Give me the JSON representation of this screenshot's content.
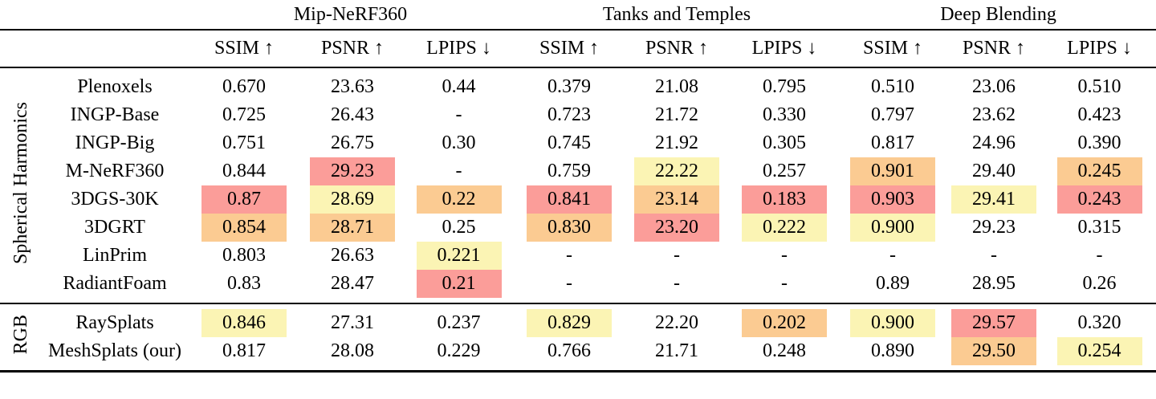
{
  "table": {
    "highlight_colors": {
      "best": "#fb9d99",
      "second": "#fbcb92",
      "third": "#fbf4b4"
    },
    "groups": [
      {
        "label": "Mip-NeRF360"
      },
      {
        "label": "Tanks and Temples"
      },
      {
        "label": "Deep Blending"
      }
    ],
    "metric_headers": [
      "SSIM ↑",
      "PSNR ↑",
      "LPIPS ↓",
      "SSIM ↑",
      "PSNR ↑",
      "LPIPS ↓",
      "SSIM ↑",
      "PSNR ↑",
      "LPIPS ↓"
    ],
    "sections": [
      {
        "label": "Spherical Harmonics",
        "rows": [
          {
            "method": "Plenoxels",
            "values": [
              "0.670",
              "23.63",
              "0.44",
              "0.379",
              "21.08",
              "0.795",
              "0.510",
              "23.06",
              "0.510"
            ],
            "hl": [
              null,
              null,
              null,
              null,
              null,
              null,
              null,
              null,
              null
            ]
          },
          {
            "method": "INGP-Base",
            "values": [
              "0.725",
              "26.43",
              "-",
              "0.723",
              "21.72",
              "0.330",
              "0.797",
              "23.62",
              "0.423"
            ],
            "hl": [
              null,
              null,
              null,
              null,
              null,
              null,
              null,
              null,
              null
            ]
          },
          {
            "method": "INGP-Big",
            "values": [
              "0.751",
              "26.75",
              "0.30",
              "0.745",
              "21.92",
              "0.305",
              "0.817",
              "24.96",
              "0.390"
            ],
            "hl": [
              null,
              null,
              null,
              null,
              null,
              null,
              null,
              null,
              null
            ]
          },
          {
            "method": "M-NeRF360",
            "values": [
              "0.844",
              "29.23",
              "-",
              "0.759",
              "22.22",
              "0.257",
              "0.901",
              "29.40",
              "0.245"
            ],
            "hl": [
              null,
              "best",
              null,
              null,
              "third",
              null,
              "second",
              null,
              "second"
            ]
          },
          {
            "method": "3DGS-30K",
            "values": [
              "0.87",
              "28.69",
              "0.22",
              "0.841",
              "23.14",
              "0.183",
              "0.903",
              "29.41",
              "0.243"
            ],
            "hl": [
              "best",
              "third",
              "second",
              "best",
              "second",
              "best",
              "best",
              "third",
              "best"
            ]
          },
          {
            "method": "3DGRT",
            "values": [
              "0.854",
              "28.71",
              "0.25",
              "0.830",
              "23.20",
              "0.222",
              "0.900",
              "29.23",
              "0.315"
            ],
            "hl": [
              "second",
              "second",
              null,
              "second",
              "best",
              "third",
              "third",
              null,
              null
            ]
          },
          {
            "method": "LinPrim",
            "values": [
              "0.803",
              "26.63",
              "0.221",
              "-",
              "-",
              "-",
              "-",
              "-",
              "-"
            ],
            "hl": [
              null,
              null,
              "third",
              null,
              null,
              null,
              null,
              null,
              null
            ]
          },
          {
            "method": "RadiantFoam",
            "values": [
              "0.83",
              "28.47",
              "0.21",
              "-",
              "-",
              "-",
              "0.89",
              "28.95",
              "0.26"
            ],
            "hl": [
              null,
              null,
              "best",
              null,
              null,
              null,
              null,
              null,
              null
            ]
          }
        ]
      },
      {
        "label": "RGB",
        "rows": [
          {
            "method": "RaySplats",
            "values": [
              "0.846",
              "27.31",
              "0.237",
              "0.829",
              "22.20",
              "0.202",
              "0.900",
              "29.57",
              "0.320"
            ],
            "hl": [
              "third",
              null,
              null,
              "third",
              null,
              "second",
              "third",
              "best",
              null
            ]
          },
          {
            "method": "MeshSplats (our)",
            "values": [
              "0.817",
              "28.08",
              "0.229",
              "0.766",
              "21.71",
              "0.248",
              "0.890",
              "29.50",
              "0.254"
            ],
            "hl": [
              null,
              null,
              null,
              null,
              null,
              null,
              null,
              "second",
              "third"
            ]
          }
        ]
      }
    ]
  }
}
